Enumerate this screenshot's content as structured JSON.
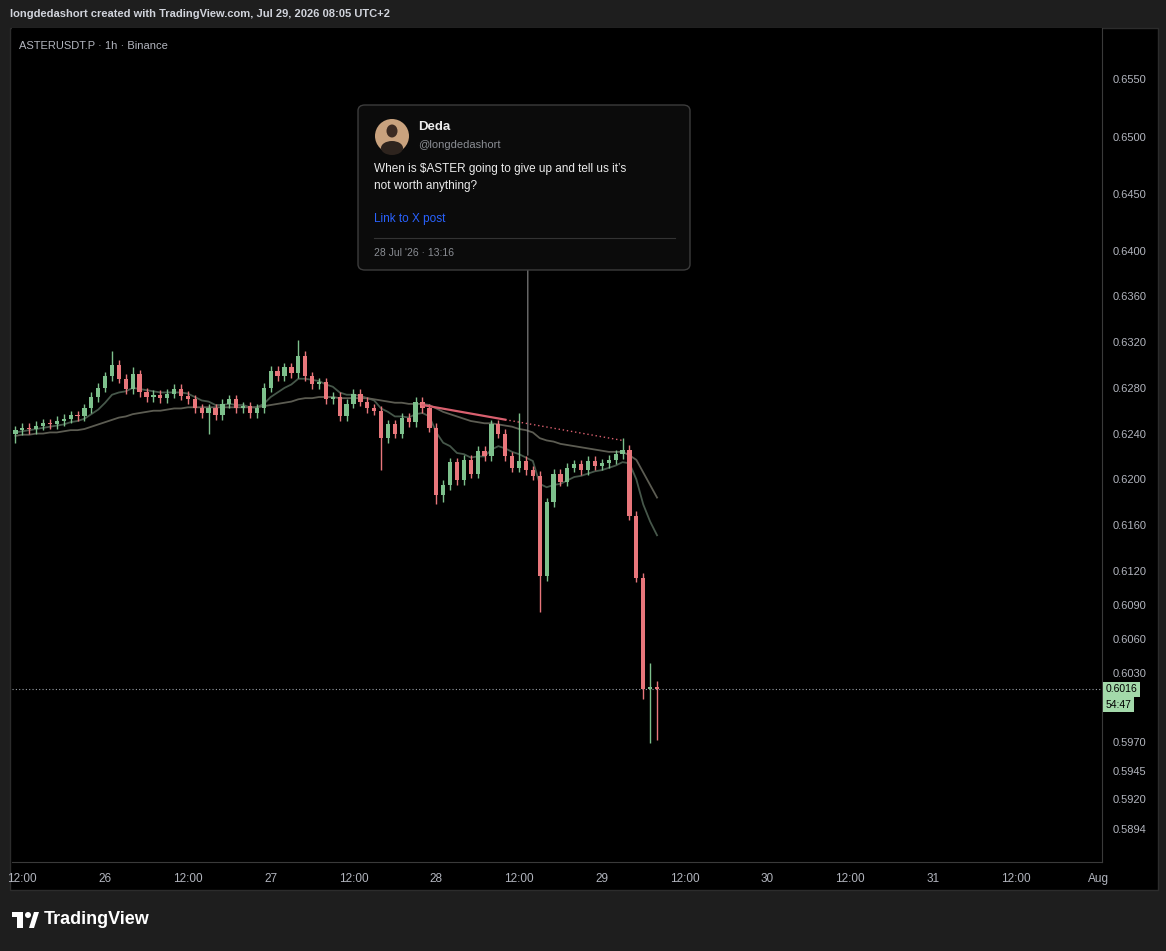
{
  "header": "longdedashort created with TradingView.com, Jul 29, 2026 08:05 UTC+2",
  "logo_text": "TradingView",
  "tweet": {
    "name": "Deda",
    "handle": "@longdedashort",
    "lines": [
      "When is $ASTER going to give up and tell us it’s",
      "not worth anything?"
    ],
    "link": "Link to X post",
    "date": "28 Jul '26 · 13:16",
    "anchor_x": 74.27,
    "anchor_price": 0.6221
  },
  "chart_data": {
    "type": "candlestick",
    "title": "ASTERUSDT.P · 1h · Binance",
    "categories": [
      null,
      "12:00",
      null,
      null,
      null,
      null,
      null,
      null,
      null,
      null,
      null,
      null,
      null,
      "26",
      null,
      null,
      null,
      null,
      null,
      null,
      null,
      null,
      null,
      null,
      null,
      "12:00",
      null,
      null,
      null,
      null,
      null,
      null,
      null,
      null,
      null,
      null,
      null,
      "27",
      null,
      null,
      null,
      null,
      null,
      null,
      null,
      null,
      null,
      null,
      null,
      "12:00",
      null,
      null,
      null,
      null,
      null,
      null,
      null,
      null,
      null,
      null,
      null,
      "28",
      null,
      null,
      null,
      null,
      null,
      null,
      null,
      null,
      null,
      null,
      null,
      "12:00",
      null,
      null,
      null,
      null,
      null,
      null,
      null,
      null,
      null,
      null,
      null,
      "29",
      null,
      null,
      null,
      null,
      null,
      null,
      null,
      null,
      null,
      null,
      null,
      "12:00",
      null,
      null,
      null,
      null,
      null,
      null,
      null,
      null,
      null,
      null,
      null,
      "30",
      null,
      null,
      null,
      null,
      null,
      null,
      null,
      null,
      null,
      null,
      null,
      "12:00",
      null,
      null,
      null,
      null,
      null,
      null,
      null,
      null,
      null,
      null,
      null,
      "31",
      null,
      null,
      null,
      null,
      null,
      null,
      null,
      null,
      null,
      null,
      null,
      "12:00",
      null,
      null,
      null,
      null,
      null,
      null,
      null,
      null,
      null,
      null,
      null,
      "Aug"
    ],
    "open": [
      0.624,
      0.6243,
      0.6245,
      0.6244,
      0.6247,
      0.6249,
      0.6248,
      0.6251,
      0.6253,
      0.6256,
      0.6255,
      0.6262,
      0.6272,
      0.628,
      0.629,
      0.63,
      0.6288,
      0.6279,
      0.6292,
      0.6276,
      0.6272,
      0.6274,
      0.6271,
      0.6275,
      0.6279,
      0.6273,
      0.627,
      0.6262,
      0.6258,
      0.6262,
      0.6256,
      0.6266,
      0.627,
      0.6262,
      0.6264,
      0.6258,
      0.6262,
      0.628,
      0.6295,
      0.629,
      0.6298,
      0.6293,
      0.6308,
      0.629,
      0.6283,
      0.6285,
      0.627,
      0.6272,
      0.6255,
      0.6266,
      0.6275,
      0.6268,
      0.6262,
      0.626,
      0.6236,
      0.6248,
      0.624,
      0.6254,
      0.625,
      0.6268,
      0.6262,
      0.6245,
      0.6186,
      0.6195,
      0.6215,
      0.6199,
      0.6217,
      0.6205,
      0.6225,
      0.622,
      0.6248,
      0.624,
      0.622,
      0.621,
      0.6216,
      0.6208,
      0.6203,
      0.6115,
      0.618,
      0.6205,
      0.6198,
      0.621,
      0.6213,
      0.6208,
      0.6216,
      0.6212,
      0.6214,
      0.6217,
      0.6222,
      0.6226,
      0.6168,
      0.6114,
      0.6016,
      0.6018,
      null,
      null,
      null,
      null,
      null,
      null,
      null,
      null,
      null,
      null,
      null,
      null,
      null,
      null,
      null,
      null,
      null,
      null,
      null,
      null,
      null,
      null,
      null,
      null,
      null,
      null,
      null,
      null,
      null,
      null,
      null,
      null,
      null,
      null,
      null,
      null,
      null,
      null,
      null,
      null,
      null,
      null,
      null,
      null,
      null,
      null,
      null,
      null,
      null,
      null,
      null,
      null,
      null,
      null,
      null,
      null,
      null,
      null,
      null,
      null,
      null,
      null,
      null,
      null
    ],
    "high": [
      0.6247,
      0.6249,
      0.6249,
      0.6251,
      0.6253,
      0.6253,
      0.6255,
      0.6257,
      0.626,
      0.626,
      0.6266,
      0.6276,
      0.6284,
      0.6294,
      0.6312,
      0.6304,
      0.6292,
      0.6298,
      0.6296,
      0.628,
      0.6278,
      0.6278,
      0.6279,
      0.6283,
      0.6283,
      0.6277,
      0.6274,
      0.6266,
      0.6266,
      0.6266,
      0.627,
      0.6274,
      0.6274,
      0.6268,
      0.6268,
      0.6266,
      0.6284,
      0.6299,
      0.6299,
      0.6302,
      0.6302,
      0.6322,
      0.6312,
      0.6294,
      0.6289,
      0.6289,
      0.6276,
      0.6276,
      0.627,
      0.6279,
      0.6279,
      0.6272,
      0.6266,
      0.6264,
      0.6252,
      0.6252,
      0.6258,
      0.6258,
      0.6272,
      0.6272,
      0.6266,
      0.6249,
      0.6199,
      0.6219,
      0.6219,
      0.6221,
      0.6221,
      0.6229,
      0.6229,
      0.6252,
      0.6252,
      0.6244,
      0.6224,
      0.6258,
      0.622,
      0.6212,
      0.6207,
      0.6184,
      0.6209,
      0.6209,
      0.6214,
      0.6217,
      0.6217,
      0.622,
      0.622,
      0.6218,
      0.6221,
      0.6226,
      0.6236,
      0.623,
      0.6172,
      0.6118,
      0.6039,
      0.6023,
      null,
      null,
      null,
      null,
      null,
      null,
      null,
      null,
      null,
      null,
      null,
      null,
      null,
      null,
      null,
      null,
      null,
      null,
      null,
      null,
      null,
      null,
      null,
      null,
      null,
      null,
      null,
      null,
      null,
      null,
      null,
      null,
      null,
      null,
      null,
      null,
      null,
      null,
      null,
      null,
      null,
      null,
      null,
      null,
      null,
      null,
      null,
      null,
      null,
      null,
      null,
      null,
      null,
      null,
      null,
      null,
      null,
      null,
      null,
      null,
      null,
      null,
      null,
      null
    ],
    "low": [
      0.6232,
      0.6239,
      0.624,
      0.624,
      0.6243,
      0.6244,
      0.6244,
      0.6247,
      0.6249,
      0.6251,
      0.6251,
      0.6258,
      0.6268,
      0.6276,
      0.6286,
      0.6284,
      0.6275,
      0.6275,
      0.6272,
      0.6268,
      0.6268,
      0.6267,
      0.6267,
      0.6271,
      0.6269,
      0.6266,
      0.6258,
      0.6254,
      0.624,
      0.6252,
      0.6252,
      0.6262,
      0.6258,
      0.6258,
      0.6254,
      0.6254,
      0.6258,
      0.6276,
      0.6286,
      0.6286,
      0.6289,
      0.6289,
      0.6286,
      0.6279,
      0.6279,
      0.6266,
      0.6266,
      0.6251,
      0.6251,
      0.6262,
      0.6264,
      0.6258,
      0.6256,
      0.6208,
      0.6232,
      0.6236,
      0.6236,
      0.6246,
      0.6246,
      0.6258,
      0.6241,
      0.6178,
      0.618,
      0.6191,
      0.6195,
      0.6195,
      0.6201,
      0.6201,
      0.6216,
      0.6216,
      0.6236,
      0.6216,
      0.6206,
      0.6206,
      0.6204,
      0.6199,
      0.6084,
      0.6111,
      0.6176,
      0.6194,
      0.6194,
      0.6206,
      0.6204,
      0.6204,
      0.6208,
      0.6208,
      0.621,
      0.6213,
      0.6218,
      0.6164,
      0.611,
      0.6008,
      0.5969,
      0.5972,
      null,
      null,
      null,
      null,
      null,
      null,
      null,
      null,
      null,
      null,
      null,
      null,
      null,
      null,
      null,
      null,
      null,
      null,
      null,
      null,
      null,
      null,
      null,
      null,
      null,
      null,
      null,
      null,
      null,
      null,
      null,
      null,
      null,
      null,
      null,
      null,
      null,
      null,
      null,
      null,
      null,
      null,
      null,
      null,
      null,
      null,
      null,
      null,
      null,
      null,
      null,
      null,
      null,
      null,
      null,
      null,
      null,
      null,
      null,
      null,
      null,
      null,
      null,
      null
    ],
    "close": [
      0.6243,
      0.6245,
      0.6244,
      0.6247,
      0.6249,
      0.6248,
      0.6251,
      0.6253,
      0.6256,
      0.6255,
      0.6262,
      0.6272,
      0.628,
      0.629,
      0.63,
      0.6288,
      0.6279,
      0.6292,
      0.6276,
      0.6272,
      0.6274,
      0.6271,
      0.6275,
      0.6279,
      0.6273,
      0.627,
      0.6262,
      0.6258,
      0.6262,
      0.6256,
      0.6266,
      0.627,
      0.6262,
      0.6264,
      0.6258,
      0.6262,
      0.628,
      0.6295,
      0.629,
      0.6298,
      0.6293,
      0.6308,
      0.629,
      0.6283,
      0.6285,
      0.627,
      0.6272,
      0.6255,
      0.6266,
      0.6275,
      0.6268,
      0.6262,
      0.626,
      0.6236,
      0.6248,
      0.624,
      0.6254,
      0.625,
      0.6268,
      0.6262,
      0.6245,
      0.6186,
      0.6195,
      0.6215,
      0.6199,
      0.6217,
      0.6205,
      0.6225,
      0.622,
      0.6248,
      0.624,
      0.622,
      0.621,
      0.6216,
      0.6208,
      0.6203,
      0.6115,
      0.618,
      0.6205,
      0.6198,
      0.621,
      0.6213,
      0.6208,
      0.6216,
      0.6212,
      0.6214,
      0.6217,
      0.6222,
      0.6226,
      0.6168,
      0.6114,
      0.6016,
      0.6018,
      0.6016,
      null,
      null,
      null,
      null,
      null,
      null,
      null,
      null,
      null,
      null,
      null,
      null,
      null,
      null,
      null,
      null,
      null,
      null,
      null,
      null,
      null,
      null,
      null,
      null,
      null,
      null,
      null,
      null,
      null,
      null,
      null,
      null,
      null,
      null,
      null,
      null,
      null,
      null,
      null,
      null,
      null,
      null,
      null,
      null,
      null,
      null,
      null,
      null,
      null,
      null,
      null,
      null,
      null,
      null,
      null,
      null,
      null,
      null,
      null,
      null,
      null,
      null,
      null,
      null
    ],
    "series": [
      {
        "type": "line",
        "color": "#46574a",
        "values": [
          0.6241,
          0.6242,
          0.6243,
          0.6244,
          0.6245,
          0.6246,
          0.6247,
          0.6248,
          0.625,
          0.6251,
          0.6253,
          0.6257,
          0.6261,
          0.6267,
          0.6274,
          0.6276,
          0.6277,
          0.628,
          0.6279,
          0.6278,
          0.6277,
          0.6276,
          0.6276,
          0.6276,
          0.6276,
          0.6275,
          0.6272,
          0.6269,
          0.6268,
          0.6265,
          0.6265,
          0.6266,
          0.6265,
          0.6265,
          0.6263,
          0.6263,
          0.6266,
          0.6272,
          0.6276,
          0.628,
          0.6283,
          0.6288,
          0.6288,
          0.6287,
          0.6286,
          0.6283,
          0.6281,
          0.6276,
          0.6274,
          0.6274,
          0.6273,
          0.6271,
          0.6269,
          0.6262,
          0.6259,
          0.6255,
          0.6255,
          0.6254,
          0.6257,
          0.6258,
          0.6255,
          0.6241,
          0.6232,
          0.6229,
          0.6223,
          0.6222,
          0.6219,
          0.622,
          0.622,
          0.6226,
          0.6229,
          0.6227,
          0.6224,
          0.6222,
          0.6219,
          0.6216,
          0.6196,
          0.6193,
          0.6195,
          0.6196,
          0.6199,
          0.6202,
          0.6203,
          0.6205,
          0.6207,
          0.6208,
          0.621,
          0.6212,
          0.6215,
          0.6214,
          0.62,
          0.6178,
          0.6163,
          0.6151,
          null,
          null,
          null,
          null,
          null,
          null,
          null,
          null,
          null,
          null,
          null,
          null,
          null,
          null,
          null,
          null,
          null,
          null,
          null,
          null,
          null,
          null,
          null,
          null,
          null,
          null,
          null,
          null,
          null,
          null,
          null,
          null,
          null,
          null,
          null,
          null,
          null,
          null,
          null,
          null,
          null,
          null,
          null,
          null,
          null,
          null,
          null,
          null,
          null,
          null,
          null,
          null,
          null,
          null,
          null,
          null,
          null,
          null,
          null,
          null,
          null,
          null,
          null,
          null
        ]
      },
      {
        "type": "line",
        "color": "#5c5c52",
        "values": [
          0.6238,
          0.6239,
          0.6239,
          0.624,
          0.624,
          0.6241,
          0.6241,
          0.6242,
          0.6243,
          0.6243,
          0.6244,
          0.6246,
          0.6248,
          0.625,
          0.6252,
          0.6254,
          0.6255,
          0.6257,
          0.6258,
          0.6259,
          0.626,
          0.626,
          0.6261,
          0.6262,
          0.6262,
          0.6263,
          0.6263,
          0.6263,
          0.6263,
          0.6263,
          0.6263,
          0.6263,
          0.6263,
          0.6263,
          0.6263,
          0.6263,
          0.6264,
          0.6265,
          0.6266,
          0.6267,
          0.6268,
          0.627,
          0.6271,
          0.6271,
          0.6272,
          0.6272,
          0.6272,
          0.6271,
          0.6271,
          0.6271,
          0.6271,
          0.6271,
          0.627,
          0.6269,
          0.6268,
          0.6267,
          0.6267,
          0.6266,
          0.6266,
          0.6266,
          0.6265,
          0.6262,
          0.6259,
          0.6257,
          0.6255,
          0.6253,
          0.6251,
          0.625,
          0.6249,
          0.6249,
          0.6248,
          0.6247,
          0.6246,
          0.6244,
          0.6243,
          0.6241,
          0.6236,
          0.6234,
          0.6233,
          0.6231,
          0.623,
          0.6229,
          0.6228,
          0.6227,
          0.6226,
          0.6225,
          0.6224,
          0.6224,
          0.6224,
          0.6221,
          0.6217,
          0.6206,
          0.6195,
          0.6184,
          null,
          null,
          null,
          null,
          null,
          null,
          null,
          null,
          null,
          null,
          null,
          null,
          null,
          null,
          null,
          null,
          null,
          null,
          null,
          null,
          null,
          null,
          null,
          null,
          null,
          null,
          null,
          null,
          null,
          null,
          null,
          null,
          null,
          null,
          null,
          null,
          null,
          null,
          null,
          null,
          null,
          null,
          null,
          null,
          null,
          null,
          null,
          null,
          null,
          null,
          null,
          null,
          null,
          null,
          null,
          null,
          null,
          null,
          null,
          null,
          null,
          null,
          null,
          null
        ]
      }
    ],
    "trend_line": {
      "color": "#d9606f",
      "start_x": 59,
      "start_price": 0.6265,
      "solid_end_x": 71,
      "end_x": 88,
      "end_price": 0.6234
    },
    "last_price": {
      "value": 0.6016,
      "label": "0.6016",
      "countdown": "54:47"
    },
    "ylim": [
      0.5865,
      0.6595
    ],
    "yticks": [
      {
        "value": 0.655,
        "label": "0.6550"
      },
      {
        "value": 0.65,
        "label": "0.6500"
      },
      {
        "value": 0.645,
        "label": "0.6450"
      },
      {
        "value": 0.64,
        "label": "0.6400"
      },
      {
        "value": 0.636,
        "label": "0.6360"
      },
      {
        "value": 0.632,
        "label": "0.6320"
      },
      {
        "value": 0.628,
        "label": "0.6280"
      },
      {
        "value": 0.624,
        "label": "0.6240"
      },
      {
        "value": 0.62,
        "label": "0.6200"
      },
      {
        "value": 0.616,
        "label": "0.6160"
      },
      {
        "value": 0.612,
        "label": "0.6120"
      },
      {
        "value": 0.609,
        "label": "0.6090"
      },
      {
        "value": 0.606,
        "label": "0.6060"
      },
      {
        "value": 0.603,
        "label": "0.6030"
      },
      {
        "value": 0.597,
        "label": "0.5970"
      },
      0.5945,
      {
        "value": 0.592,
        "label": "0.5920"
      },
      0.5894
    ],
    "grid": false
  }
}
